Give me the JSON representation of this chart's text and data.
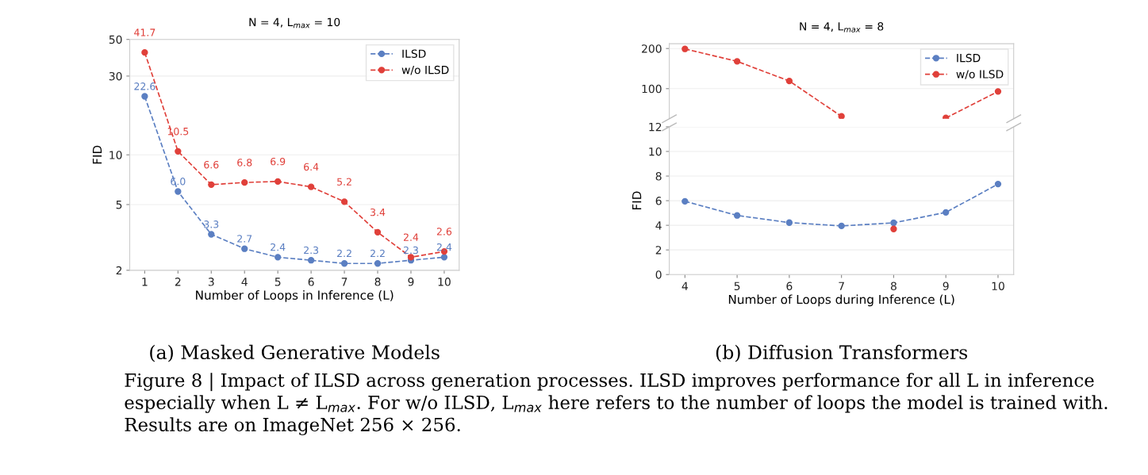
{
  "chart_data": [
    {
      "type": "line",
      "title": "N = 4, L$_{max}$ = 10",
      "xlabel": "Number of Loops in Inference (L)",
      "ylabel": "FID",
      "x": [
        1,
        2,
        3,
        4,
        5,
        6,
        7,
        8,
        9,
        10
      ],
      "xlim": [
        0.55,
        10.45
      ],
      "xticks": [
        1,
        2,
        3,
        4,
        5,
        6,
        7,
        8,
        9,
        10
      ],
      "log": true,
      "ylim": [
        2,
        50
      ],
      "yticks": [
        2,
        5,
        10,
        30,
        50
      ],
      "grid": "y",
      "legend": "top right",
      "marker": "circle",
      "line_style": "dashed",
      "series": [
        {
          "name": "ILSD",
          "color": "#5b7fc2",
          "values": [
            22.6,
            6.0,
            3.3,
            2.7,
            2.4,
            2.3,
            2.2,
            2.2,
            2.3,
            2.4
          ],
          "value_labels": [
            "22.6",
            "6.0",
            "3.3",
            "2.7",
            "2.4",
            "2.3",
            "2.2",
            "2.2",
            "2.3",
            "2.4"
          ]
        },
        {
          "name": "w/o ILSD",
          "color": "#e0403a",
          "values": [
            41.7,
            10.5,
            6.6,
            6.8,
            6.9,
            6.4,
            5.2,
            3.4,
            2.4,
            2.6
          ],
          "value_labels": [
            "41.7",
            "10.5",
            "6.6",
            "6.8",
            "6.9",
            "6.4",
            "5.2",
            "3.4",
            "2.4",
            "2.6"
          ]
        }
      ],
      "annotations": [
        "(a) Masked Generative Models",
        "Figure 8 | Impact of ILSD across generation processes. ILSD improves performance for all L in inference especially when L ≠ L$_{max}$. For w/o ILSD, L$_{max}$ here refers to the number of loops the model is trained with. Results are on ImageNet 256 × 256."
      ]
    },
    {
      "type": "line",
      "title": "N = 4, L$_{max}$ = 8",
      "x": [
        4,
        5,
        6,
        7,
        8,
        9,
        10
      ],
      "xlim": [
        3.7,
        10.3
      ],
      "xticks": [
        4,
        5,
        6,
        7,
        8,
        9,
        10
      ],
      "ylim": [
        25,
        212
      ],
      "yticks": [
        100,
        200
      ],
      "tick_labels": "y",
      "grid": "y",
      "legend": "top right",
      "marker": "circle",
      "line_style": "dashed",
      "series": [
        {
          "name": "ILSD",
          "color": "#5b7fc2",
          "values": [
            null,
            null,
            null,
            null,
            null,
            null,
            null
          ]
        },
        {
          "name": "w/o ILSD",
          "color": "#e0403a",
          "values": [
            199,
            168,
            119,
            31,
            null,
            27,
            93
          ]
        }
      ]
    },
    {
      "type": "line",
      "xlabel": "Number of Loops during Inference (L)",
      "ylabel": "FID",
      "x": [
        4,
        5,
        6,
        7,
        8,
        9,
        10
      ],
      "xlim": [
        3.7,
        10.3
      ],
      "xticks": [
        4,
        5,
        6,
        7,
        8,
        9,
        10
      ],
      "ylim": [
        0,
        12
      ],
      "yticks": [
        0,
        2,
        4,
        6,
        8,
        10,
        12
      ],
      "grid": "y",
      "marker": "circle",
      "line_style": "dashed",
      "series": [
        {
          "color": "#5b7fc2",
          "values": [
            5.95,
            4.8,
            4.22,
            3.95,
            4.2,
            5.05,
            7.35
          ]
        },
        {
          "color": "#e0403a",
          "values": [
            null,
            null,
            null,
            null,
            3.7,
            null,
            null
          ]
        }
      ],
      "annotations": [
        "(b) Diffusion Transformers"
      ]
    }
  ]
}
